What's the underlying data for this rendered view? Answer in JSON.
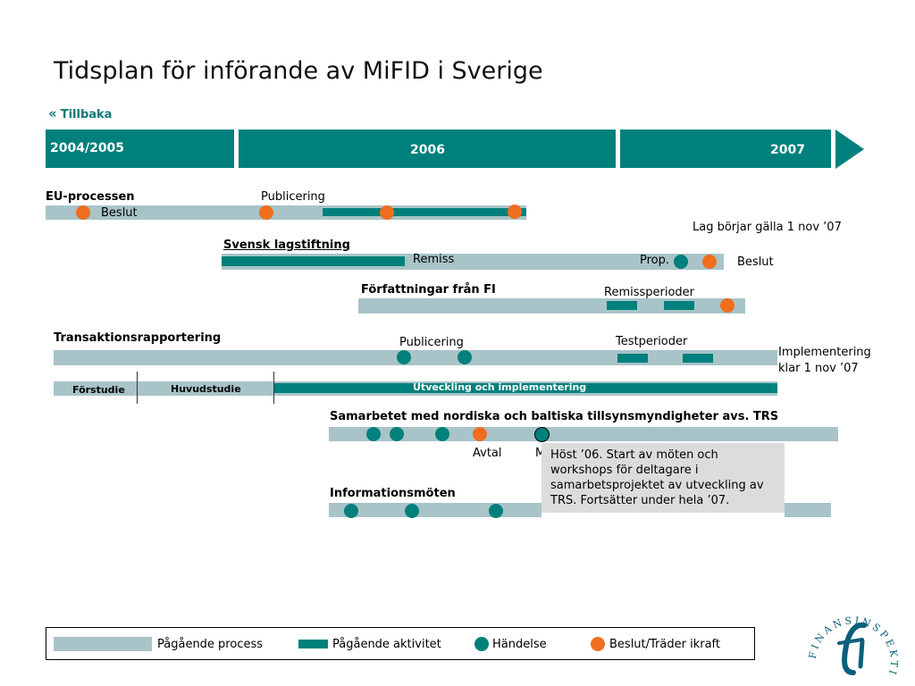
{
  "title": "Tidsplan för införande av MiFID i Sverige",
  "back_link": "Tillbaka",
  "years": [
    "2004/2005",
    "2006",
    "2007"
  ],
  "eu": {
    "heading": "EU-processen",
    "publicering": "Publicering",
    "beslut": "Beslut"
  },
  "lag_label": "Lag börjar gälla 1 nov ’07",
  "svensk": {
    "heading": "Svensk lagstiftning",
    "remiss": "Remiss",
    "prop": "Prop.",
    "beslut": "Beslut"
  },
  "forfattningar": {
    "heading": "Författningar från FI",
    "remissperioder": "Remissperioder"
  },
  "transaktion": {
    "heading": "Transaktionsrapportering",
    "publicering": "Publicering",
    "testperioder": "Testperioder",
    "impl_line1": "Implementering",
    "impl_line2": "klar 1 nov ’07",
    "forstudie": "Förstudie",
    "huvudstudie": "Huvudstudie",
    "utveckling": "Utveckling och implementering"
  },
  "samarbete": {
    "heading": "Samarbetet med nordiska och baltiska tillsynsmyndigheter avs. TRS",
    "avtal": "Avtal",
    "m_label": "M"
  },
  "callout": "Höst ’06. Start av möten och workshops för deltagare i samarbetsprojektet av utveckling av TRS. Fortsätter under hela ’07.",
  "info": {
    "heading": "Informationsmöten"
  },
  "legend": {
    "process": "Pågående process",
    "activity": "Pågående aktivitet",
    "event": "Händelse",
    "decision": "Beslut/Träder ikraft"
  },
  "logo_text": "FINANSINSPEKTIONEN",
  "colors": {
    "teal": "#00807c",
    "process_gray": "#a8c4c8",
    "orange": "#f06e1e",
    "callout_bg": "#dcdcdc"
  }
}
